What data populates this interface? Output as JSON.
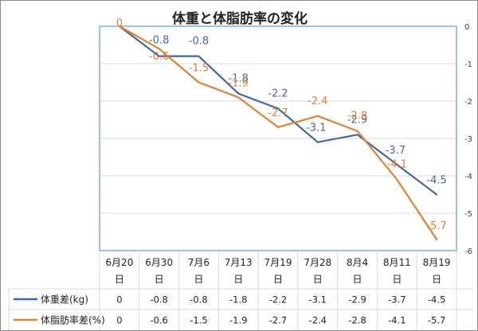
{
  "chart_data": {
    "type": "line",
    "title": "体重と体脂肪率の変化",
    "categories": [
      [
        "6月20",
        "日"
      ],
      [
        "6月30",
        "日"
      ],
      [
        "7月6",
        "日"
      ],
      [
        "7月13",
        "日"
      ],
      [
        "7月19",
        "日"
      ],
      [
        "7月28",
        "日"
      ],
      [
        "8月4",
        "日"
      ],
      [
        "8月11",
        "日"
      ],
      [
        "8月19",
        "日"
      ]
    ],
    "ylim": [
      -6,
      0
    ],
    "yticks": [
      0,
      -1,
      -2,
      -3,
      -4,
      -5,
      -6
    ],
    "grid": true,
    "series": [
      {
        "name": "体重差(kg)",
        "color": "#4267a6",
        "values": [
          0,
          -0.8,
          -0.8,
          -1.8,
          -2.2,
          -3.1,
          -2.9,
          -3.7,
          -4.5
        ],
        "labels": [
          "0",
          "-0.8",
          "-0.8",
          "-1.8",
          "-2.2",
          "-3.1",
          "-2.9",
          "-3.7",
          "-4.5"
        ]
      },
      {
        "name": "体脂肪率差(%)",
        "color": "#e0812f",
        "values": [
          0,
          -0.6,
          -1.5,
          -1.9,
          -2.7,
          -2.4,
          -2.8,
          -4.1,
          -5.7
        ],
        "labels": [
          "0",
          "-0.6",
          "-1.5",
          "-1.9",
          "-2.7",
          "-2.4",
          "-2.8",
          "-4.1",
          "-5.7"
        ]
      }
    ],
    "data_table": {
      "rows": [
        [
          "0",
          "-0.8",
          "-0.8",
          "-1.8",
          "-2.2",
          "-3.1",
          "-2.9",
          "-3.7",
          "-4.5"
        ],
        [
          "0",
          "-0.6",
          "-1.5",
          "-1.9",
          "-2.7",
          "-2.4",
          "-2.8",
          "-4.1",
          "-5.7"
        ]
      ]
    }
  }
}
